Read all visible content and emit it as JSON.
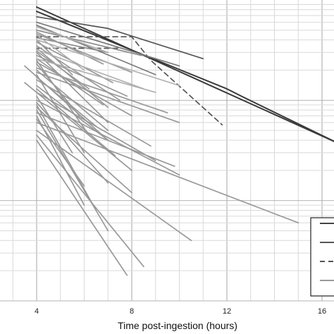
{
  "chart_data": {
    "type": "line",
    "xlabel": "Time post-ingestion (hours)",
    "ylabel": "",
    "title": "",
    "x_ticks": [
      4,
      8,
      12,
      16
    ],
    "xlim": [
      0,
      17
    ],
    "y_scale": "log",
    "ylim": [
      1,
      1000
    ],
    "grid": true,
    "legend_position": "bottom-right",
    "legend_entries": [
      {
        "style": "solid",
        "color": "#444444"
      },
      {
        "style": "solid",
        "color": "#555555"
      },
      {
        "style": "dashed",
        "color": "#555555"
      },
      {
        "style": "solid",
        "color": "#999999"
      }
    ],
    "series": [
      {
        "style": "solid",
        "color": "#3a3a3a",
        "x": [
          4,
          16.6
        ],
        "y": [
          850,
          38
        ]
      },
      {
        "style": "solid",
        "color": "#3a3a3a",
        "x": [
          4,
          12,
          12.6,
          16.6
        ],
        "y": [
          770,
          130,
          110,
          38
        ]
      },
      {
        "style": "solid",
        "color": "#555555",
        "x": [
          4,
          7,
          11
        ],
        "y": [
          680,
          520,
          260
        ]
      },
      {
        "style": "dashed",
        "color": "#555555",
        "x": [
          4,
          8,
          8.8,
          11.8
        ],
        "y": [
          430,
          430,
          250,
          57
        ]
      },
      {
        "style": "dashed",
        "color": "#555555",
        "x": [
          4,
          7.5
        ],
        "y": [
          330,
          330
        ]
      },
      {
        "style": "solid",
        "color": "#7a7a7a",
        "x": [
          4,
          9
        ],
        "y": [
          560,
          180
        ]
      },
      {
        "style": "solid",
        "color": "#7a7a7a",
        "x": [
          4,
          10
        ],
        "y": [
          600,
          220
        ]
      },
      {
        "style": "solid",
        "color": "#8a8a8a",
        "x": [
          4,
          8.4
        ],
        "y": [
          500,
          280
        ]
      },
      {
        "style": "solid",
        "color": "#8a8a8a",
        "x": [
          4,
          7
        ],
        "y": [
          420,
          300
        ]
      },
      {
        "style": "solid",
        "color": "#999999",
        "x": [
          3.5,
          7
        ],
        "y": [
          220,
          40
        ]
      },
      {
        "style": "solid",
        "color": "#999999",
        "x": [
          3.5,
          8
        ],
        "y": [
          150,
          20
        ]
      },
      {
        "style": "solid",
        "color": "#999999",
        "x": [
          4,
          7
        ],
        "y": [
          300,
          60
        ]
      },
      {
        "style": "solid",
        "color": "#999999",
        "x": [
          4,
          6.8
        ],
        "y": [
          260,
          90
        ]
      },
      {
        "style": "solid",
        "color": "#999999",
        "x": [
          4,
          7
        ],
        "y": [
          200,
          50
        ]
      },
      {
        "style": "solid",
        "color": "#999999",
        "x": [
          4,
          6
        ],
        "y": [
          180,
          30
        ]
      },
      {
        "style": "solid",
        "color": "#999999",
        "x": [
          4,
          8.8
        ],
        "y": [
          160,
          35
        ]
      },
      {
        "style": "solid",
        "color": "#999999",
        "x": [
          4,
          9
        ],
        "y": [
          120,
          25
        ]
      },
      {
        "style": "solid",
        "color": "#999999",
        "x": [
          4,
          10
        ],
        "y": [
          100,
          18
        ]
      },
      {
        "style": "solid",
        "color": "#999999",
        "x": [
          4,
          6.5
        ],
        "y": [
          90,
          8
        ]
      },
      {
        "style": "solid",
        "color": "#999999",
        "x": [
          4,
          7
        ],
        "y": [
          80,
          5
        ]
      },
      {
        "style": "solid",
        "color": "#999999",
        "x": [
          4,
          6
        ],
        "y": [
          70,
          9
        ]
      },
      {
        "style": "solid",
        "color": "#999999",
        "x": [
          4,
          15
        ],
        "y": [
          60,
          6
        ]
      },
      {
        "style": "solid",
        "color": "#999999",
        "x": [
          4,
          10.5
        ],
        "y": [
          50,
          4
        ]
      },
      {
        "style": "solid",
        "color": "#999999",
        "x": [
          4,
          8.5
        ],
        "y": [
          45,
          2.2
        ]
      },
      {
        "style": "solid",
        "color": "#999999",
        "x": [
          4,
          7.8
        ],
        "y": [
          40,
          1.8
        ]
      },
      {
        "style": "solid",
        "color": "#999999",
        "x": [
          4,
          7
        ],
        "y": [
          140,
          40
        ]
      },
      {
        "style": "solid",
        "color": "#999999",
        "x": [
          4,
          8
        ],
        "y": [
          240,
          70
        ]
      },
      {
        "style": "solid",
        "color": "#999999",
        "x": [
          4,
          7.2
        ],
        "y": [
          380,
          150
        ]
      },
      {
        "style": "solid",
        "color": "#999999",
        "x": [
          4,
          7.5
        ],
        "y": [
          350,
          100
        ]
      },
      {
        "style": "solid",
        "color": "#999999",
        "x": [
          4,
          6.2
        ],
        "y": [
          310,
          130
        ]
      },
      {
        "style": "solid",
        "color": "#999999",
        "x": [
          4,
          9.5
        ],
        "y": [
          210,
          75
        ]
      },
      {
        "style": "solid",
        "color": "#999999",
        "x": [
          4,
          10
        ],
        "y": [
          190,
          60
        ]
      },
      {
        "style": "solid",
        "color": "#999999",
        "x": [
          4,
          5.8
        ],
        "y": [
          230,
          70
        ]
      },
      {
        "style": "solid",
        "color": "#999999",
        "x": [
          4,
          6.5
        ],
        "y": [
          170,
          55
        ]
      },
      {
        "style": "solid",
        "color": "#999999",
        "x": [
          4,
          7.3
        ],
        "y": [
          130,
          28
        ]
      },
      {
        "style": "solid",
        "color": "#999999",
        "x": [
          4,
          5.5
        ],
        "y": [
          110,
          30
        ]
      },
      {
        "style": "solid",
        "color": "#999999",
        "x": [
          4,
          7.8
        ],
        "y": [
          280,
          110
        ]
      },
      {
        "style": "solid",
        "color": "#999999",
        "x": [
          4,
          8
        ],
        "y": [
          460,
          190
        ]
      },
      {
        "style": "solid",
        "color": "#999999",
        "x": [
          4,
          6.8
        ],
        "y": [
          480,
          230
        ]
      },
      {
        "style": "solid",
        "color": "#999999",
        "x": [
          4,
          5.5
        ],
        "y": [
          400,
          180
        ]
      },
      {
        "style": "solid",
        "color": "#999999",
        "x": [
          4,
          7
        ],
        "y": [
          330,
          85
        ]
      },
      {
        "style": "solid",
        "color": "#999999",
        "x": [
          4,
          6.2
        ],
        "y": [
          250,
          45
        ]
      },
      {
        "style": "solid",
        "color": "#999999",
        "x": [
          4,
          7
        ],
        "y": [
          95,
          15
        ]
      },
      {
        "style": "solid",
        "color": "#999999",
        "x": [
          4,
          8
        ],
        "y": [
          85,
          12
        ]
      },
      {
        "style": "solid",
        "color": "#999999",
        "x": [
          4,
          6
        ],
        "y": [
          65,
          14
        ]
      },
      {
        "style": "solid",
        "color": "#999999",
        "x": [
          4,
          9.8
        ],
        "y": [
          75,
          22
        ]
      },
      {
        "style": "solid",
        "color": "#b0b0b0",
        "x": [
          4,
          10
        ],
        "y": [
          400,
          140
        ]
      },
      {
        "style": "solid",
        "color": "#b0b0b0",
        "x": [
          4,
          8.5
        ],
        "y": [
          320,
          130
        ]
      },
      {
        "style": "solid",
        "color": "#b0b0b0",
        "x": [
          4,
          9
        ],
        "y": [
          260,
          120
        ]
      },
      {
        "style": "solid",
        "color": "#b0b0b0",
        "x": [
          4,
          7
        ],
        "y": [
          540,
          300
        ]
      },
      {
        "style": "solid",
        "color": "#b0b0b0",
        "x": [
          4,
          6
        ],
        "y": [
          450,
          200
        ]
      }
    ]
  }
}
